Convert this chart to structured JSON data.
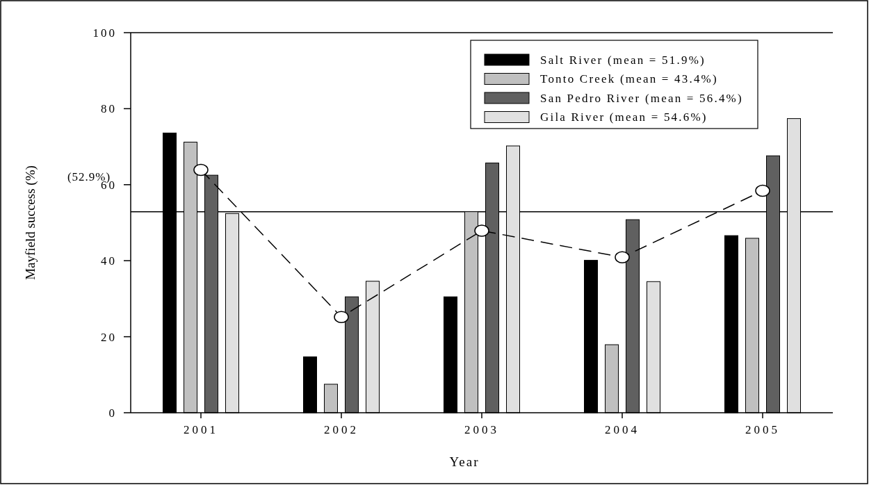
{
  "chart_data": {
    "type": "bar",
    "xlabel": "Year",
    "ylabel": "Mayfield success (%)",
    "categories": [
      "2001",
      "2002",
      "2003",
      "2004",
      "2005"
    ],
    "series": [
      {
        "name": "Salt River (mean = 51.9%)",
        "color": "#000000",
        "values": [
          73.6,
          14.7,
          30.5,
          40.1,
          46.6
        ]
      },
      {
        "name": "Tonto Creek (mean = 43.4%)",
        "color": "#c0c0c0",
        "values": [
          71.2,
          7.5,
          52.9,
          17.9,
          45.9
        ]
      },
      {
        "name": "San Pedro River (mean = 56.4%)",
        "color": "#606060",
        "values": [
          62.5,
          30.5,
          65.7,
          50.8,
          67.6
        ]
      },
      {
        "name": "Gila River (mean = 54.6%)",
        "color": "#e0e0e0",
        "values": [
          52.4,
          34.6,
          70.2,
          34.5,
          77.4
        ]
      },
      {
        "type": "line",
        "color": "#000000",
        "marker": "circle",
        "line_style": "dashed",
        "values": [
          63.9,
          25.2,
          47.9,
          40.9,
          58.4
        ]
      }
    ],
    "ylim": [
      0,
      100
    ],
    "yticks": [
      0,
      20,
      40,
      60,
      80,
      100
    ],
    "ref_lines": [
      {
        "axis": "y",
        "value": 52.9,
        "label": "(52.9%)",
        "color": "#000000"
      }
    ],
    "legend": "top right",
    "grid": false
  }
}
